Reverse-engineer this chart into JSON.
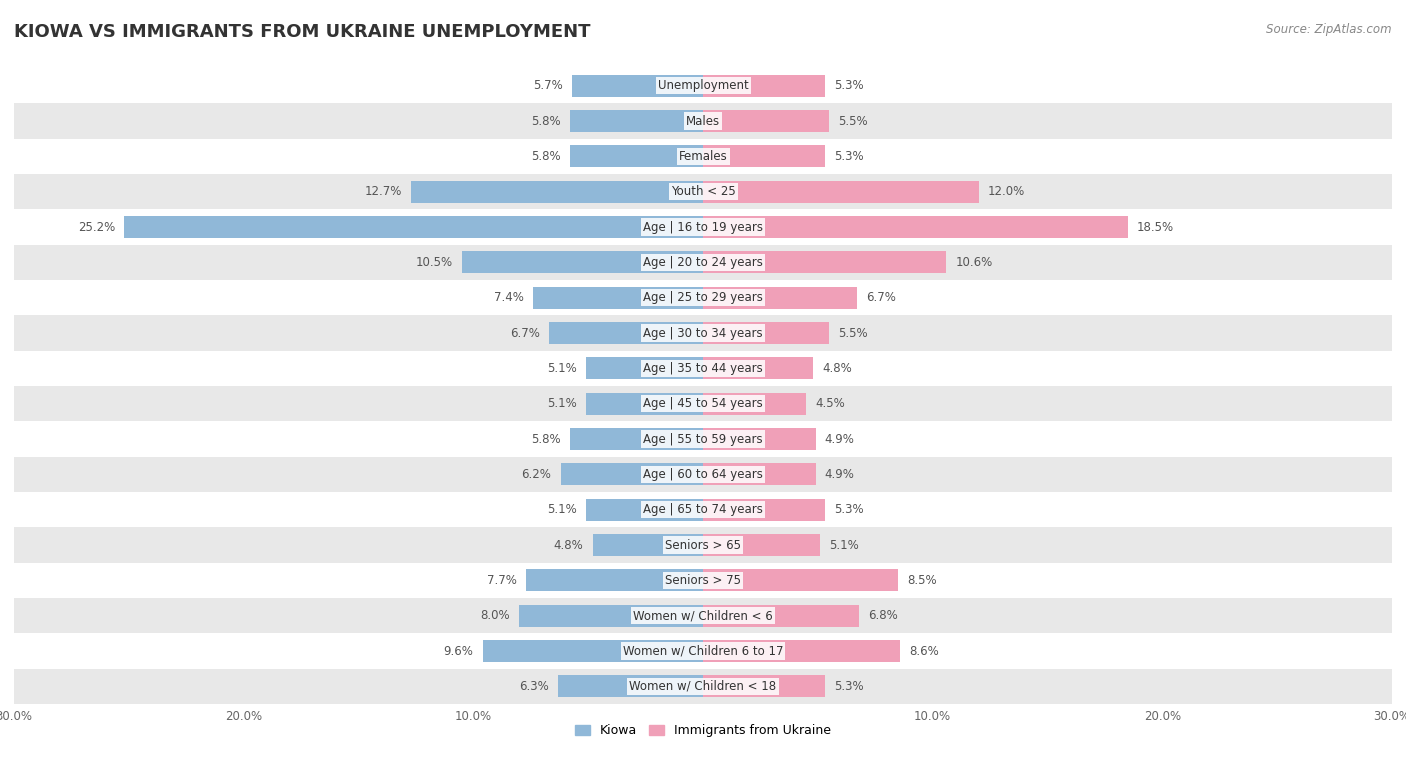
{
  "title": "KIOWA VS IMMIGRANTS FROM UKRAINE UNEMPLOYMENT",
  "source": "Source: ZipAtlas.com",
  "categories": [
    "Unemployment",
    "Males",
    "Females",
    "Youth < 25",
    "Age | 16 to 19 years",
    "Age | 20 to 24 years",
    "Age | 25 to 29 years",
    "Age | 30 to 34 years",
    "Age | 35 to 44 years",
    "Age | 45 to 54 years",
    "Age | 55 to 59 years",
    "Age | 60 to 64 years",
    "Age | 65 to 74 years",
    "Seniors > 65",
    "Seniors > 75",
    "Women w/ Children < 6",
    "Women w/ Children 6 to 17",
    "Women w/ Children < 18"
  ],
  "kiowa_values": [
    5.7,
    5.8,
    5.8,
    12.7,
    25.2,
    10.5,
    7.4,
    6.7,
    5.1,
    5.1,
    5.8,
    6.2,
    5.1,
    4.8,
    7.7,
    8.0,
    9.6,
    6.3
  ],
  "ukraine_values": [
    5.3,
    5.5,
    5.3,
    12.0,
    18.5,
    10.6,
    6.7,
    5.5,
    4.8,
    4.5,
    4.9,
    4.9,
    5.3,
    5.1,
    8.5,
    6.8,
    8.6,
    5.3
  ],
  "kiowa_color": "#90b8d8",
  "ukraine_color": "#f0a0b8",
  "kiowa_label": "Kiowa",
  "ukraine_label": "Immigrants from Ukraine",
  "xlim": 30.0,
  "background_color": "#ffffff",
  "row_colors_even": "#ffffff",
  "row_colors_odd": "#e8e8e8",
  "bar_height": 0.62,
  "title_fontsize": 13,
  "label_fontsize": 8.5,
  "tick_fontsize": 8.5,
  "source_fontsize": 8.5,
  "value_fontsize": 8.5
}
